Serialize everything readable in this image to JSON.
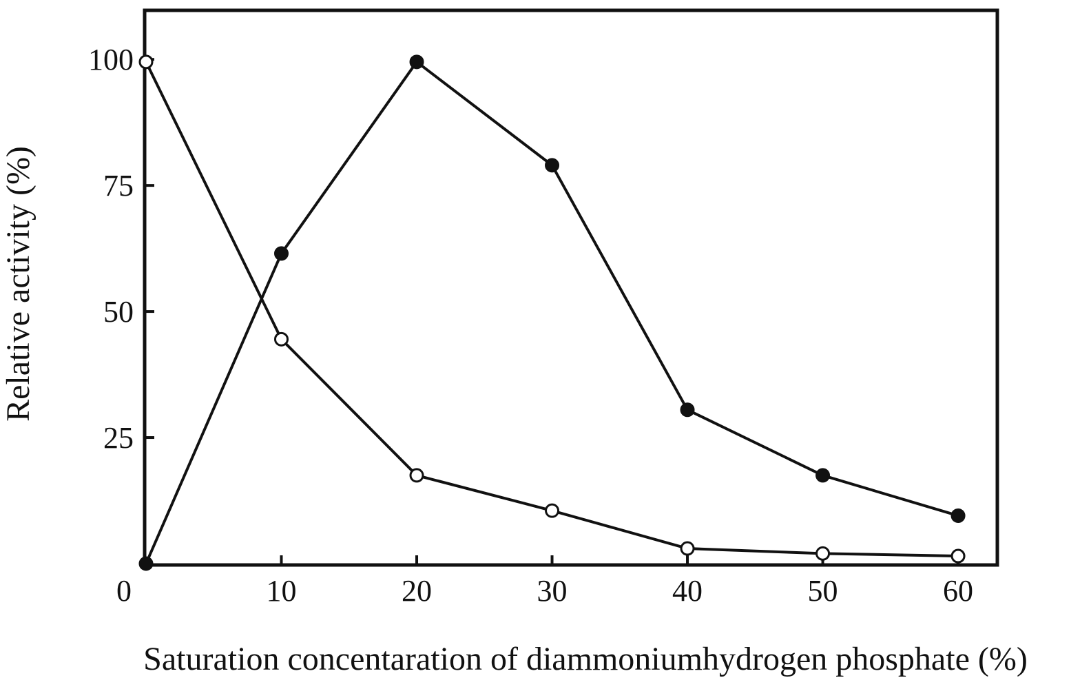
{
  "chart_data": {
    "type": "line",
    "title": "",
    "xlabel": "Saturation concentaration of diammoniumhydrogen phosphate (%)",
    "ylabel": "Relative activity (%)",
    "xlim": [
      0,
      63
    ],
    "ylim": [
      0,
      110
    ],
    "x_ticks": [
      0,
      10,
      20,
      30,
      40,
      50,
      60
    ],
    "x_tick_labels": [
      "0",
      "10",
      "20",
      "30",
      "40",
      "50",
      "60"
    ],
    "y_ticks": [
      25,
      50,
      75,
      100
    ],
    "y_tick_labels": [
      "25",
      "50",
      "75",
      "100"
    ],
    "grid": false,
    "legend": "none",
    "series": [
      {
        "marker": "filled-circle",
        "color": "#111111",
        "x": [
          0,
          10,
          20,
          30,
          40,
          50,
          60
        ],
        "y": [
          0,
          61.5,
          99.5,
          79,
          30.5,
          17.5,
          9.5
        ]
      },
      {
        "marker": "open-circle",
        "color": "#111111",
        "x": [
          0,
          10,
          20,
          30,
          40,
          50,
          60
        ],
        "y": [
          99.5,
          44.5,
          17.5,
          10.5,
          3,
          2,
          1.5
        ]
      }
    ]
  }
}
